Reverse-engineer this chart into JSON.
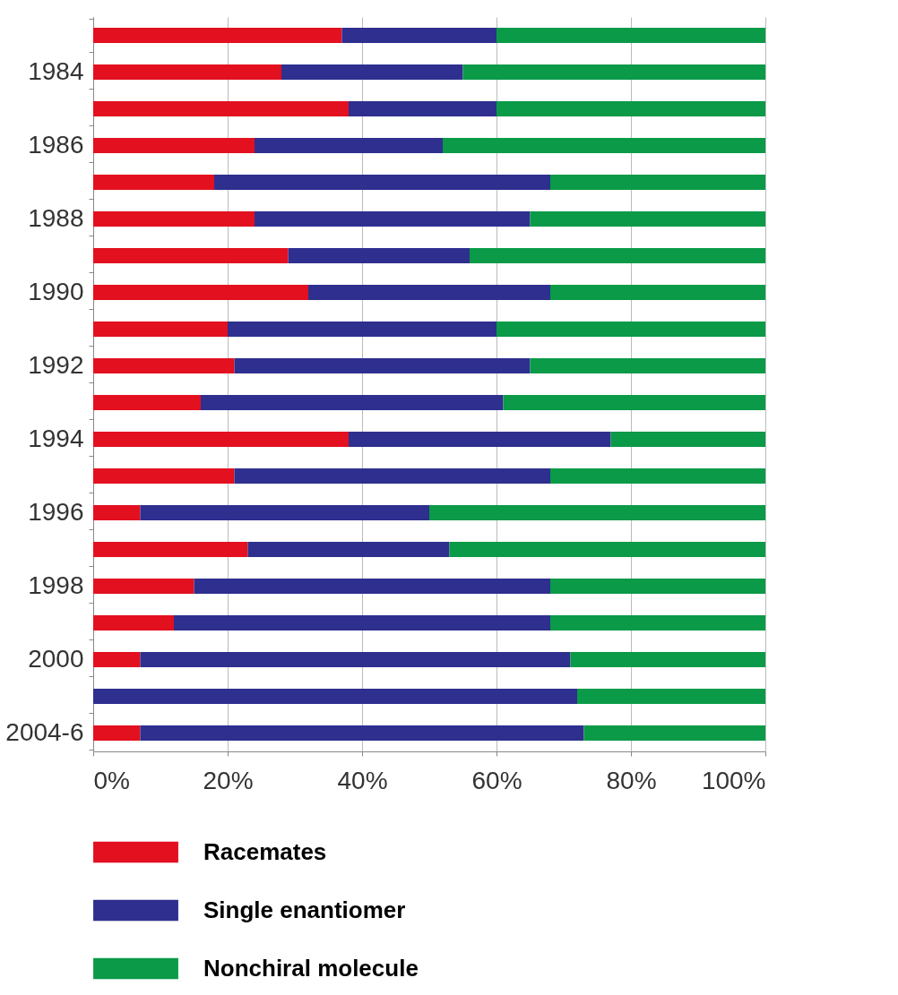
{
  "chart_data": {
    "type": "bar",
    "orientation": "horizontal",
    "stacked": true,
    "categories": [
      null,
      "1984",
      null,
      "1986",
      null,
      "1988",
      null,
      "1990",
      null,
      "1992",
      null,
      "1994",
      null,
      "1996",
      null,
      "1998",
      null,
      "2000",
      null,
      "2004-6"
    ],
    "series": [
      {
        "name": "Racemates",
        "color": "#e3101f",
        "values": [
          37,
          28,
          38,
          24,
          18,
          24,
          29,
          32,
          20,
          21,
          16,
          38,
          21,
          7,
          23,
          15,
          12,
          7,
          0,
          7
        ]
      },
      {
        "name": "Single enantiomer",
        "color": "#2e2f8f",
        "values": [
          23,
          27,
          22,
          28,
          50,
          41,
          27,
          36,
          40,
          44,
          45,
          39,
          47,
          43,
          30,
          53,
          56,
          64,
          72,
          66
        ]
      },
      {
        "name": "Nonchiral molecule",
        "color": "#0a9a48",
        "values": [
          40,
          45,
          40,
          48,
          32,
          35,
          44,
          32,
          40,
          35,
          39,
          23,
          32,
          50,
          47,
          32,
          32,
          29,
          28,
          27
        ]
      }
    ],
    "xlim": [
      0,
      100
    ],
    "xticks": [
      {
        "value": 0,
        "label": "0%"
      },
      {
        "value": 20,
        "label": "20%"
      },
      {
        "value": 40,
        "label": "40%"
      },
      {
        "value": 60,
        "label": "60%"
      },
      {
        "value": 80,
        "label": "80%"
      },
      {
        "value": 100,
        "label": "100%"
      }
    ],
    "grid": "x",
    "legend": "bottom"
  }
}
